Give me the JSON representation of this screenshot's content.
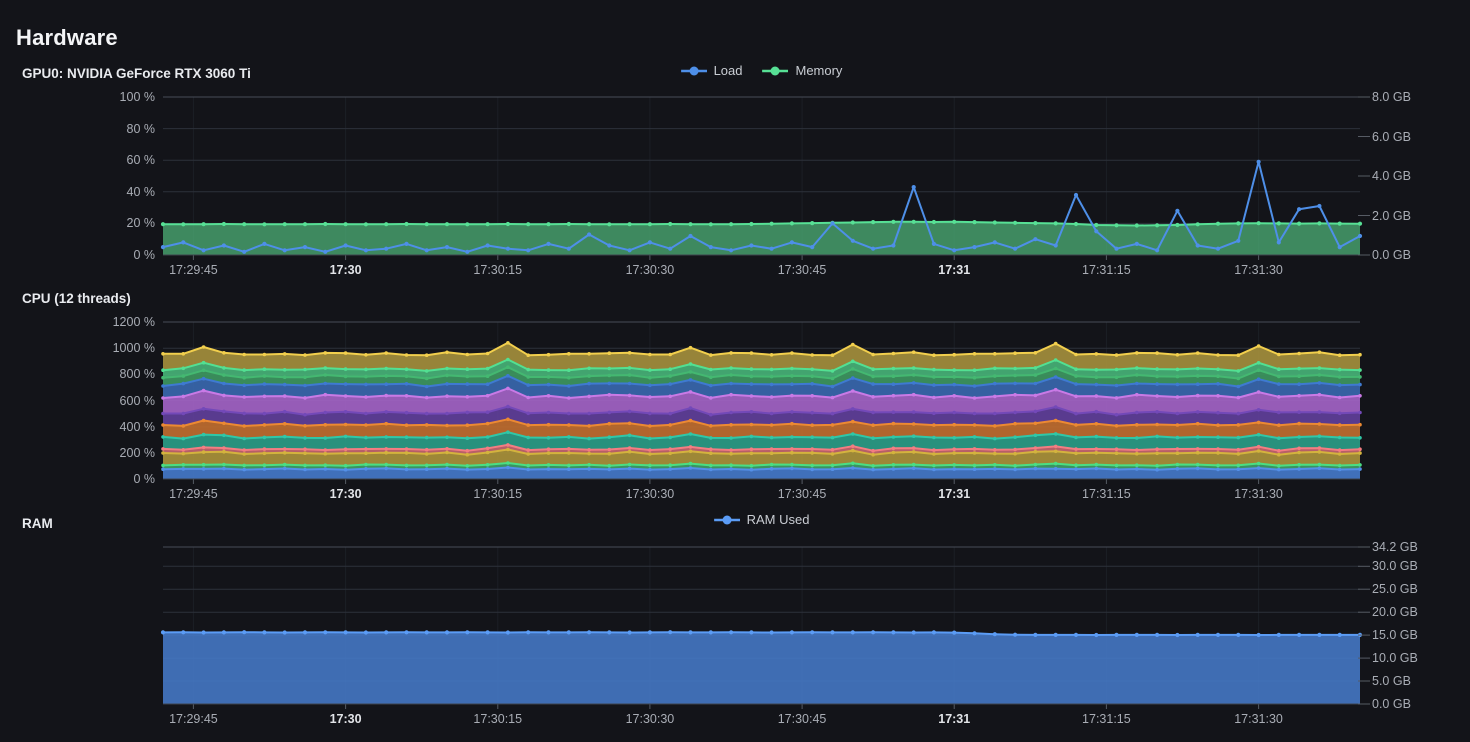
{
  "page": {
    "title": "Hardware"
  },
  "sections": {
    "gpu": {
      "title": "GPU0: NVIDIA GeForce RTX 3060 Ti"
    },
    "cpu": {
      "title": "CPU (12 threads)"
    },
    "ram": {
      "title": "RAM"
    }
  },
  "time_axis": {
    "span_s": 118,
    "ticks": [
      {
        "label": "17:29:45",
        "s": 3,
        "bold": false
      },
      {
        "label": "17:30",
        "s": 18,
        "bold": true
      },
      {
        "label": "17:30:15",
        "s": 33,
        "bold": false
      },
      {
        "label": "17:30:30",
        "s": 48,
        "bold": false
      },
      {
        "label": "17:30:45",
        "s": 63,
        "bold": false
      },
      {
        "label": "17:31",
        "s": 78,
        "bold": true
      },
      {
        "label": "17:31:15",
        "s": 93,
        "bold": false
      },
      {
        "label": "17:31:30",
        "s": 108,
        "bold": false
      }
    ]
  },
  "chart_data": [
    {
      "id": "gpu",
      "type": "area",
      "title": "GPU0: NVIDIA GeForce RTX 3060 Ti",
      "legend": [
        {
          "label": "Load",
          "color": "#4e8fe8"
        },
        {
          "label": "Memory",
          "color": "#57e095"
        }
      ],
      "y_left": {
        "max": 100,
        "ticks": [
          {
            "label": "100 %",
            "v": 100
          },
          {
            "label": "80 %",
            "v": 80
          },
          {
            "label": "60 %",
            "v": 60
          },
          {
            "label": "40 %",
            "v": 40
          },
          {
            "label": "20 %",
            "v": 20
          },
          {
            "label": "0 %",
            "v": 0
          }
        ]
      },
      "y_right": {
        "max": 8,
        "ticks": [
          {
            "label": "8.0 GB",
            "v": 8
          },
          {
            "label": "6.0 GB",
            "v": 6
          },
          {
            "label": "4.0 GB",
            "v": 4
          },
          {
            "label": "2.0 GB",
            "v": 2
          },
          {
            "label": "0.0 GB",
            "v": 0
          }
        ]
      },
      "series": [
        {
          "name": "Memory",
          "unit": "%",
          "color": "#57e095",
          "fill": "rgba(74,170,115,0.78)",
          "values": [
            19.5,
            19.4,
            19.5,
            19.6,
            19.5,
            19.4,
            19.5,
            19.5,
            19.6,
            19.5,
            19.4,
            19.5,
            19.6,
            19.5,
            19.5,
            19.4,
            19.5,
            19.6,
            19.5,
            19.5,
            19.6,
            19.5,
            19.4,
            19.5,
            19.5,
            19.6,
            19.5,
            19.4,
            19.5,
            19.6,
            19.8,
            20.0,
            20.2,
            20.4,
            20.6,
            20.8,
            21.0,
            21.0,
            20.9,
            21.0,
            20.8,
            20.6,
            20.4,
            20.2,
            20.0,
            19.6,
            19.0,
            18.8,
            18.7,
            18.8,
            19.0,
            19.4,
            19.8,
            20.0,
            20.1,
            20.0,
            19.9,
            20.0,
            19.9,
            19.8
          ]
        },
        {
          "name": "Load",
          "unit": "%",
          "color": "#4e8fe8",
          "fill": "none",
          "values": [
            5,
            8,
            3,
            6,
            2,
            7,
            3,
            5,
            2,
            6,
            3,
            4,
            7,
            3,
            5,
            2,
            6,
            4,
            3,
            7,
            4,
            13,
            6,
            3,
            8,
            4,
            12,
            5,
            3,
            6,
            4,
            8,
            5,
            20,
            9,
            4,
            6,
            43,
            7,
            3,
            5,
            8,
            4,
            10,
            6,
            38,
            15,
            4,
            7,
            3,
            28,
            6,
            4,
            9,
            59,
            8,
            29,
            31,
            5,
            12
          ]
        }
      ]
    },
    {
      "id": "cpu",
      "type": "stacked-area",
      "title": "CPU (12 threads)",
      "y_left": {
        "max": 1200,
        "ticks": [
          {
            "label": "1200 %",
            "v": 1200
          },
          {
            "label": "1000 %",
            "v": 1000
          },
          {
            "label": "800 %",
            "v": 800
          },
          {
            "label": "600 %",
            "v": 600
          },
          {
            "label": "400 %",
            "v": 400
          },
          {
            "label": "200 %",
            "v": 200
          },
          {
            "label": "0 %",
            "v": 0
          }
        ]
      },
      "threads": {
        "count": 12,
        "unit": "%",
        "bases": [
          75,
          30,
          90,
          30,
          90,
          95,
          90,
          125,
          90,
          60,
          55,
          115
        ],
        "noise": [
          0,
          3,
          -2,
          5,
          -4,
          1,
          6,
          -3,
          2,
          -5,
          4,
          7,
          -2,
          0,
          5,
          -4,
          2,
          8,
          -3,
          1
        ],
        "spikes": {
          "2": 4,
          "17": 6,
          "26": 4,
          "34": 5,
          "44": 7,
          "54": 4
        },
        "colors": [
          {
            "line": "#5490e8",
            "fill": "#4478c8"
          },
          {
            "line": "#4ade83",
            "fill": "#3f9e66"
          },
          {
            "line": "#d4b33e",
            "fill": "#a9913a"
          },
          {
            "line": "#f47d82",
            "fill": "#c4666e"
          },
          {
            "line": "#30c7a7",
            "fill": "#2a9c85"
          },
          {
            "line": "#ec8932",
            "fill": "#bf6c2f"
          },
          {
            "line": "#7349b8",
            "fill": "#5f3f99"
          },
          {
            "line": "#c97ae6",
            "fill": "#a263c4"
          },
          {
            "line": "#3e7ad1",
            "fill": "#3867ad"
          },
          {
            "line": "#44b871",
            "fill": "#3d9660"
          },
          {
            "line": "#52e092",
            "fill": "#46b176"
          },
          {
            "line": "#f2cf4d",
            "fill": "#a38e3c"
          }
        ]
      }
    },
    {
      "id": "ram",
      "type": "area",
      "title": "RAM",
      "legend": [
        {
          "label": "RAM Used",
          "color": "#5b9cf5"
        }
      ],
      "y_right": {
        "max": 34.2,
        "ticks": [
          {
            "label": "34.2 GB",
            "v": 34.2
          },
          {
            "label": "30.0 GB",
            "v": 30
          },
          {
            "label": "25.0 GB",
            "v": 25
          },
          {
            "label": "20.0 GB",
            "v": 20
          },
          {
            "label": "15.0 GB",
            "v": 15
          },
          {
            "label": "10.0 GB",
            "v": 10
          },
          {
            "label": "5.0 GB",
            "v": 5
          },
          {
            "label": "0.0 GB",
            "v": 0
          }
        ]
      },
      "series": [
        {
          "name": "RAM Used",
          "unit": "GB",
          "color": "#5b9cf5",
          "fill": "rgba(70,122,200,0.88)",
          "values": [
            15.6,
            15.62,
            15.58,
            15.6,
            15.63,
            15.6,
            15.57,
            15.6,
            15.62,
            15.6,
            15.58,
            15.6,
            15.61,
            15.59,
            15.6,
            15.62,
            15.6,
            15.58,
            15.61,
            15.6,
            15.59,
            15.62,
            15.6,
            15.58,
            15.6,
            15.63,
            15.6,
            15.59,
            15.61,
            15.6,
            15.58,
            15.6,
            15.62,
            15.6,
            15.59,
            15.61,
            15.6,
            15.58,
            15.6,
            15.55,
            15.4,
            15.2,
            15.1,
            15.05,
            15.05,
            15.06,
            15.04,
            15.05,
            15.06,
            15.05,
            15.04,
            15.05,
            15.06,
            15.05,
            15.04,
            15.05,
            15.05,
            15.06,
            15.05,
            15.05
          ]
        }
      ]
    }
  ]
}
